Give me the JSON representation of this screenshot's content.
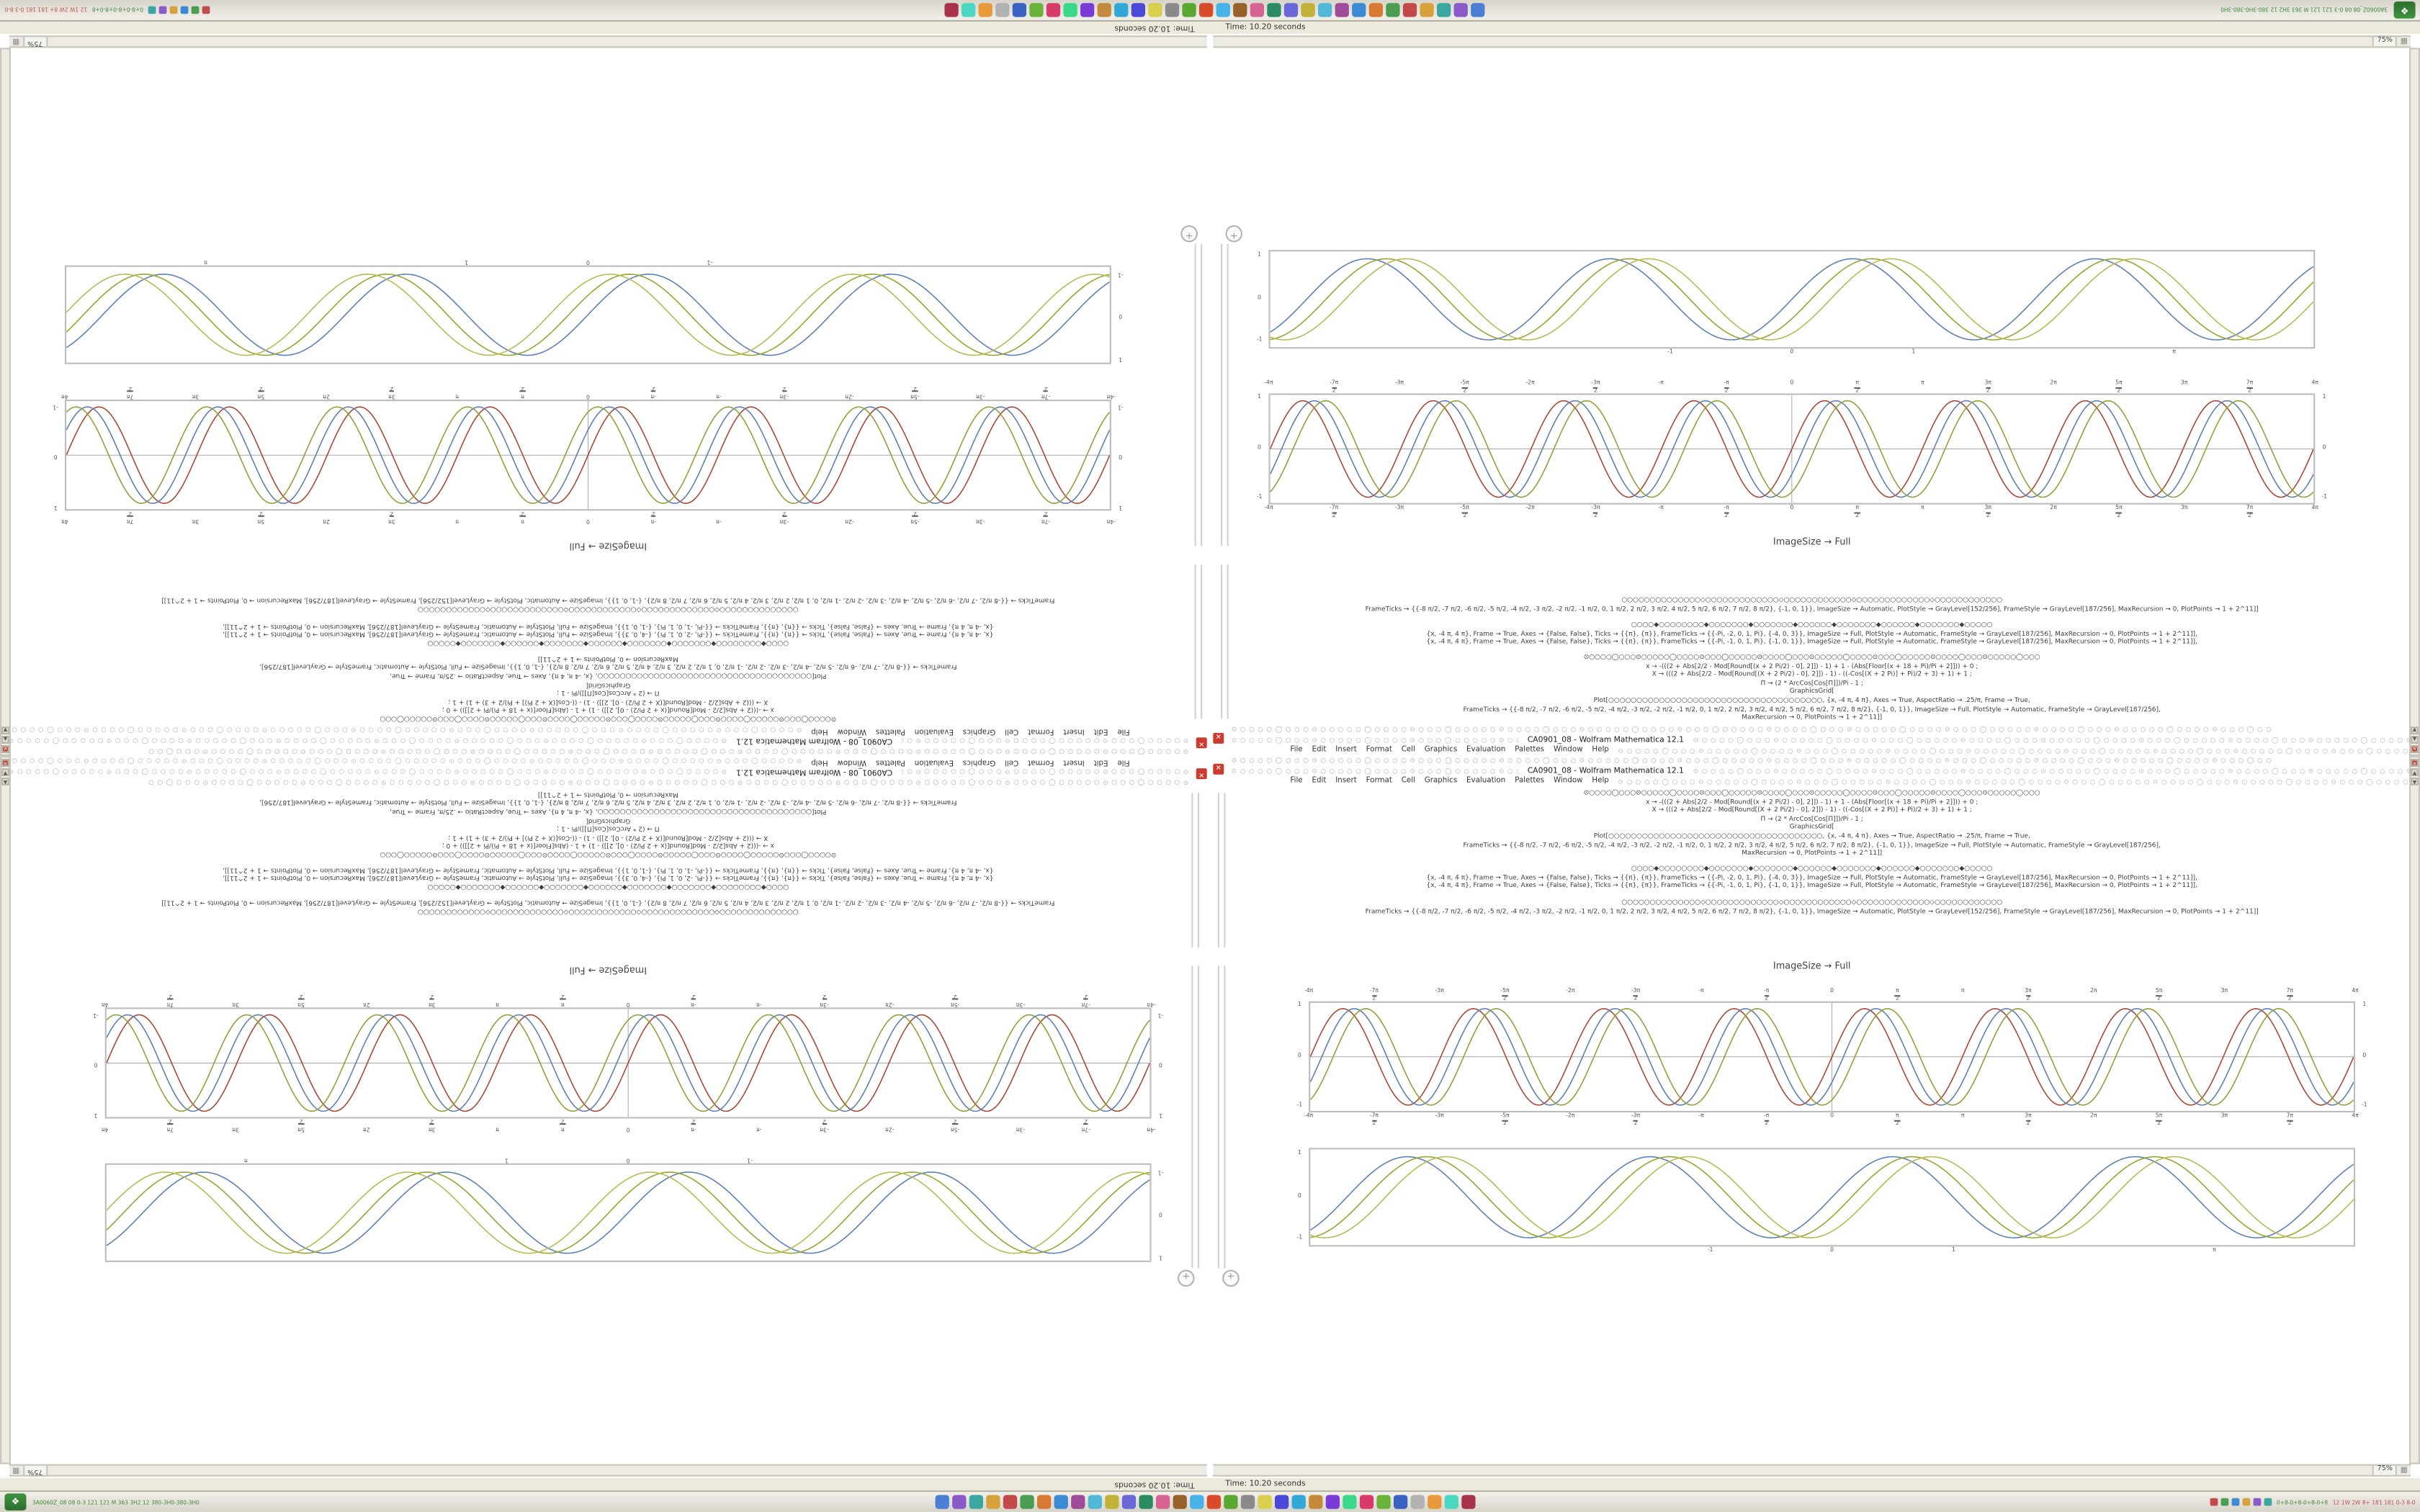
{
  "window": {
    "title": "CA0901_08 - Wolfram Mathematica 12.1",
    "menu": [
      "File",
      "Edit",
      "Insert",
      "Format",
      "Cell",
      "Graphics",
      "Evaluation",
      "Palettes",
      "Window",
      "Help"
    ],
    "close_glyph": "✕",
    "status_text": "Time: 10.20 seconds",
    "zoom_label": "75%",
    "grip_glyph": "▦",
    "chrome_chain": "⊙○○○○◯○○○⊙○○○○○◯○○○○⊙○○○◯○○○○○⊙○○○○◯○○○⊙○○○○○◯○○○○⊙○○○◯○○○○○⊙○○○○◯○○○⊙○○○○○◯○○○○⊙○○○◯○○○○○⊙○○○○◯○○○⊙○○○○○◯○○○○⊙○○○◯○○"
  },
  "cells": {
    "caption": "ImageSize → Full",
    "code_block_a": [
      "⊙○○○○◯○○○⊙○○○○○◯○○○○⊙○○○◯○○○○○⊙○○○○◯○○○⊙○○○○○◯○○○○⊙○○○◯○○○○○⊙○○○○◯○○○⊙○○○○○◯○○○",
      "x → -(((2 + Abs[2/2 - Mod[Round[(x + 2 Pi/2) - 0], 2]]) - 1) + 1 - (Abs[Floor[(x + 18 + Pi)/Pi + 2]])) + 0 ;",
      "X → (((2 + Abs[2/2 - Mod[Round[(X + 2 Pi/2) - 0], 2]]) - 1) - ((-Cos[(X + 2 Pi)] + Pi)/2 + 3) + 1) + 1 ;",
      "Π → (2 * ArcCos[Cos[Π]])/Pi - 1 ;",
      "GraphicsGrid[",
      "Plot[○○○○○○○○○○○○○○○○○○○○○○○○○○○○○○○○○○○○○○, {x, -4 π, 4 π}, Axes → True, AspectRatio → .25/π, Frame → True,",
      "FrameTicks → {{-8 π/2, -7 π/2, -6 π/2, -5 π/2, -4 π/2, -3 π/2, -2 π/2, -1 π/2, 0, 1 π/2, 2 π/2, 3 π/2, 4 π/2, 5 π/2, 6 π/2, 7 π/2, 8 π/2}, {-1, 0, 1}}, ImageSize → Full, PlotStyle → Automatic, FrameStyle → GrayLevel[187/256],",
      "MaxRecursion → 0, PlotPoints → 1 + 2^11]]"
    ],
    "code_block_b": [
      "○○○○◆○○○○○○○○◆○○○○○○○◆○○○○○○○◆○○○○○○◆○○○○○○○◆○○○○○○◆○○○○○○○◆○○○○○",
      "{x, -4 π, 4 π}, Frame → True, Axes → {False, False}, Ticks → {{π}, {π}}, FrameTicks → {{-Pi, -2, 0, 1, Pi}, {-4, 0, 3}}, ImageSize → Full, PlotStyle → Automatic, FrameStyle → GrayLevel[187/256], MaxRecursion → 0, PlotPoints → 1 + 2^11]],",
      "{x, -4 π, 4 π}, Frame → True, Axes → {False, False}, Ticks → {{π}, {π}}, FrameTicks → {{-Pi, -1, 0, 1, Pi}, {-1, 0, 1}}, ImageSize → Full, PlotStyle → Automatic, FrameStyle → GrayLevel[187/256], MaxRecursion → 0, PlotPoints → 1 + 2^11]],"
    ],
    "code_block_c": [
      "○○○○○○○○○○○○○○◇○○○○○○○○○○○○○◇○○○○○○○○○○○○◇○○○○○○○○○○○○○◇○○○○○○○○○○○○",
      "FrameTicks → {{-8 π/2, -7 π/2, -6 π/2, -5 π/2, -4 π/2, -3 π/2, -2 π/2, -1 π/2, 0, 1 π/2, 2 π/2, 3 π/2, 4 π/2, 5 π/2, 6 π/2, 7 π/2, 8 π/2}, {-1, 0, 1}}, ImageSize → Automatic, PlotStyle → GrayLevel[152/256], FrameStyle → GrayLevel[187/256], MaxRecursion → 0, PlotPoints → 1 + 2^11]]"
    ]
  },
  "chart_data": [
    {
      "id": "plot-braid",
      "type": "line",
      "title": "",
      "x_range": [
        -12.566,
        12.566
      ],
      "y_range": [
        -1.12,
        1.12
      ],
      "x_tick_values": [
        -12.566,
        -10.996,
        -9.425,
        -7.854,
        -6.283,
        -4.712,
        -3.142,
        -1.571,
        0,
        1.571,
        3.142,
        4.712,
        6.283,
        7.854,
        9.425,
        10.996,
        12.566
      ],
      "x_tick_labels": [
        "-4π",
        "-7π/2",
        "-3π",
        "-5π/2",
        "-2π",
        "-3π/2",
        "-π",
        "-π/2",
        "0",
        "π/2",
        "π",
        "3π/2",
        "2π",
        "5π/2",
        "3π",
        "7π/2",
        "4π"
      ],
      "y_ticks": [
        -1,
        0,
        1
      ],
      "labels_top": true,
      "y_labels_left": true,
      "y_labels_right": true,
      "frame": true,
      "axes": true,
      "series": [
        {
          "name": "series-red",
          "color": "#a94a38",
          "waveform": "sin",
          "frequency": 2,
          "phase": 0,
          "amplitude": 1
        },
        {
          "name": "series-blue",
          "color": "#5e81b5",
          "waveform": "sin",
          "frequency": 2,
          "phase": -0.55,
          "amplitude": 1
        },
        {
          "name": "series-olive",
          "color": "#93a13c",
          "waveform": "sin",
          "frequency": 2,
          "phase": -1.1,
          "amplitude": 1
        }
      ]
    },
    {
      "id": "plot-waves",
      "type": "line",
      "title": "",
      "x_range": [
        -4.3,
        4.3
      ],
      "y_range": [
        -1.18,
        1.18
      ],
      "x_tick_values": [
        -1,
        0,
        1,
        3.142
      ],
      "x_tick_labels": [
        "-1",
        "0",
        "1",
        "π"
      ],
      "y_ticks": [
        -1,
        0,
        1
      ],
      "labels_top": false,
      "y_labels_left": true,
      "y_labels_right": false,
      "frame": true,
      "axes": false,
      "series": [
        {
          "name": "series-blue",
          "color": "#5e81b5",
          "waveform": "sin",
          "frequency": 3.1416,
          "phase": 0,
          "amplitude": 1
        },
        {
          "name": "series-olive",
          "color": "#9aa52f",
          "waveform": "sin",
          "frequency": 3.1416,
          "phase": -0.5,
          "amplitude": 1
        },
        {
          "name": "series-olive-light",
          "color": "#b7ba55",
          "waveform": "sin",
          "frequency": 3.1416,
          "phase": -1.0,
          "amplitude": 1
        }
      ]
    }
  ],
  "scrollbar": {
    "glyph_close": "✕",
    "glyph_up": "▲",
    "glyph_down": "▼"
  },
  "pm_button_glyph": "+",
  "taskbar": {
    "start_glyph": "❖",
    "left_text": "3A0060Z_08 08 0-3 121 121 M 363 3H2 12 380-3H0-380-3H0",
    "tray_text_green": "0+8-0+8-0+8-0+8",
    "tray_text_red": "12 1W 2W 8+ 181 181 0-3 8-0",
    "app_icon_colors": [
      "#4a7fd4",
      "#8a5ac8",
      "#3aa8a0",
      "#d8a23a",
      "#c24a4a",
      "#4a9e52",
      "#d87a34",
      "#3a8ad4",
      "#a04a9a",
      "#52b8d8",
      "#c2b23a",
      "#6a68d8",
      "#2a8a62",
      "#d86292",
      "#96622a",
      "#46b2e8",
      "#d84a2a",
      "#5aa832",
      "#8a8a8a",
      "#d8d04a",
      "#4a4ad8",
      "#32a8d8",
      "#c28a3a",
      "#7a3ad8",
      "#3ad88a",
      "#d83a6a",
      "#6ab23a",
      "#3a62c2",
      "#b2b2b2",
      "#e89a3a",
      "#4ad8c2",
      "#a8324a"
    ],
    "tray_icon_colors": [
      "#c24a4a",
      "#4a9e52",
      "#3a8ad4",
      "#d8a23a",
      "#8a5ac8",
      "#3aa8a0"
    ]
  }
}
